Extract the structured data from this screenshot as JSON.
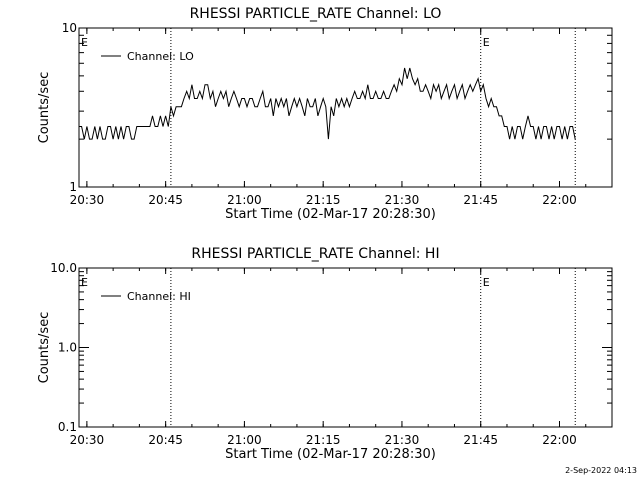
{
  "footer": {
    "timestamp": "2-Sep-2022 04:13"
  },
  "chart_data": [
    {
      "type": "line",
      "title": "RHESSI PARTICLE_RATE Channel: LO",
      "xlabel": "Start Time (02-Mar-17 20:28:30)",
      "ylabel": "Counts/sec",
      "yscale": "log",
      "xlim": [
        "20:28:30",
        "22:10:00"
      ],
      "ylim": [
        1,
        10
      ],
      "x_ticks": [
        "20:30",
        "20:45",
        "21:00",
        "21:15",
        "21:30",
        "21:45",
        "22:00"
      ],
      "y_ticks": [
        "1",
        "10"
      ],
      "legend": {
        "position": "top-left",
        "entries": [
          "Channel: LO"
        ]
      },
      "markers": [
        {
          "time": "20:46:00",
          "label": ""
        },
        {
          "time": "21:45:00",
          "label": "E"
        },
        {
          "time": "22:03:00",
          "label": ""
        }
      ],
      "start_marker_label": "E",
      "series": [
        {
          "name": "Channel: LO",
          "points": [
            [
              "20:28:30",
              2.4
            ],
            [
              "20:29:00",
              2.4
            ],
            [
              "20:29:30",
              2.0
            ],
            [
              "20:30:00",
              2.4
            ],
            [
              "20:30:30",
              2.0
            ],
            [
              "20:31:00",
              2.0
            ],
            [
              "20:31:30",
              2.4
            ],
            [
              "20:32:00",
              2.0
            ],
            [
              "20:32:30",
              2.4
            ],
            [
              "20:33:00",
              2.0
            ],
            [
              "20:33:30",
              2.0
            ],
            [
              "20:34:00",
              2.4
            ],
            [
              "20:34:30",
              2.4
            ],
            [
              "20:35:00",
              2.0
            ],
            [
              "20:35:30",
              2.4
            ],
            [
              "20:36:00",
              2.0
            ],
            [
              "20:36:30",
              2.4
            ],
            [
              "20:37:00",
              2.0
            ],
            [
              "20:37:30",
              2.4
            ],
            [
              "20:38:00",
              2.4
            ],
            [
              "20:38:30",
              2.0
            ],
            [
              "20:39:00",
              2.0
            ],
            [
              "20:39:30",
              2.4
            ],
            [
              "20:40:00",
              2.4
            ],
            [
              "20:41:00",
              2.4
            ],
            [
              "20:42:00",
              2.4
            ],
            [
              "20:42:30",
              2.8
            ],
            [
              "20:43:00",
              2.4
            ],
            [
              "20:43:30",
              2.4
            ],
            [
              "20:44:00",
              2.8
            ],
            [
              "20:44:30",
              2.4
            ],
            [
              "20:45:00",
              2.8
            ],
            [
              "20:45:30",
              2.4
            ],
            [
              "20:46:00",
              3.2
            ],
            [
              "20:46:30",
              2.8
            ],
            [
              "20:47:00",
              3.2
            ],
            [
              "20:48:00",
              3.2
            ],
            [
              "20:48:30",
              3.6
            ],
            [
              "20:49:00",
              4.0
            ],
            [
              "20:49:30",
              3.6
            ],
            [
              "20:50:00",
              4.4
            ],
            [
              "20:50:30",
              3.6
            ],
            [
              "20:51:00",
              3.6
            ],
            [
              "20:51:30",
              4.0
            ],
            [
              "20:52:00",
              3.6
            ],
            [
              "20:52:30",
              4.4
            ],
            [
              "20:53:00",
              4.4
            ],
            [
              "20:53:30",
              3.6
            ],
            [
              "20:54:00",
              4.0
            ],
            [
              "20:54:30",
              3.2
            ],
            [
              "20:55:00",
              3.6
            ],
            [
              "20:55:30",
              4.0
            ],
            [
              "20:56:00",
              3.6
            ],
            [
              "20:56:30",
              4.0
            ],
            [
              "20:57:00",
              3.2
            ],
            [
              "20:57:30",
              3.6
            ],
            [
              "20:58:00",
              4.0
            ],
            [
              "20:58:30",
              3.6
            ],
            [
              "20:59:00",
              3.2
            ],
            [
              "20:59:30",
              3.6
            ],
            [
              "21:00:00",
              3.6
            ],
            [
              "21:00:30",
              3.2
            ],
            [
              "21:01:00",
              3.6
            ],
            [
              "21:01:30",
              3.6
            ],
            [
              "21:02:00",
              3.2
            ],
            [
              "21:02:30",
              3.2
            ],
            [
              "21:03:00",
              3.6
            ],
            [
              "21:03:30",
              4.0
            ],
            [
              "21:04:00",
              3.2
            ],
            [
              "21:04:30",
              3.2
            ],
            [
              "21:05:00",
              3.6
            ],
            [
              "21:05:30",
              2.8
            ],
            [
              "21:06:00",
              3.6
            ],
            [
              "21:06:30",
              3.2
            ],
            [
              "21:07:00",
              3.6
            ],
            [
              "21:07:30",
              3.2
            ],
            [
              "21:08:00",
              3.6
            ],
            [
              "21:08:30",
              2.8
            ],
            [
              "21:09:00",
              3.2
            ],
            [
              "21:09:30",
              3.6
            ],
            [
              "21:10:00",
              3.2
            ],
            [
              "21:10:30",
              3.6
            ],
            [
              "21:11:00",
              3.2
            ],
            [
              "21:11:30",
              2.8
            ],
            [
              "21:12:00",
              3.6
            ],
            [
              "21:12:30",
              3.2
            ],
            [
              "21:13:00",
              3.2
            ],
            [
              "21:13:30",
              3.6
            ],
            [
              "21:14:00",
              2.8
            ],
            [
              "21:14:30",
              3.2
            ],
            [
              "21:15:00",
              3.6
            ],
            [
              "21:15:30",
              3.2
            ],
            [
              "21:16:00",
              2.0
            ],
            [
              "21:16:30",
              3.2
            ],
            [
              "21:17:00",
              2.8
            ],
            [
              "21:17:30",
              3.6
            ],
            [
              "21:18:00",
              3.2
            ],
            [
              "21:18:30",
              3.6
            ],
            [
              "21:19:00",
              3.2
            ],
            [
              "21:19:30",
              3.6
            ],
            [
              "21:20:00",
              3.2
            ],
            [
              "21:20:30",
              3.6
            ],
            [
              "21:21:00",
              4.0
            ],
            [
              "21:21:30",
              3.6
            ],
            [
              "21:22:00",
              3.6
            ],
            [
              "21:22:30",
              4.0
            ],
            [
              "21:23:00",
              3.6
            ],
            [
              "21:23:30",
              4.4
            ],
            [
              "21:24:00",
              3.6
            ],
            [
              "21:24:30",
              3.6
            ],
            [
              "21:25:00",
              4.0
            ],
            [
              "21:25:30",
              3.6
            ],
            [
              "21:26:00",
              3.6
            ],
            [
              "21:26:30",
              4.0
            ],
            [
              "21:27:00",
              3.6
            ],
            [
              "21:27:30",
              3.6
            ],
            [
              "21:28:00",
              4.0
            ],
            [
              "21:28:30",
              4.4
            ],
            [
              "21:29:00",
              4.0
            ],
            [
              "21:29:30",
              4.8
            ],
            [
              "21:30:00",
              4.4
            ],
            [
              "21:30:30",
              5.6
            ],
            [
              "21:31:00",
              4.8
            ],
            [
              "21:31:30",
              5.6
            ],
            [
              "21:32:00",
              4.8
            ],
            [
              "21:32:30",
              4.4
            ],
            [
              "21:33:00",
              4.8
            ],
            [
              "21:33:30",
              4.0
            ],
            [
              "21:34:00",
              4.0
            ],
            [
              "21:34:30",
              4.4
            ],
            [
              "21:35:00",
              4.0
            ],
            [
              "21:35:30",
              3.6
            ],
            [
              "21:36:00",
              4.4
            ],
            [
              "21:36:30",
              4.0
            ],
            [
              "21:37:00",
              4.4
            ],
            [
              "21:37:30",
              3.6
            ],
            [
              "21:38:00",
              4.0
            ],
            [
              "21:38:30",
              4.4
            ],
            [
              "21:39:00",
              3.6
            ],
            [
              "21:39:30",
              4.0
            ],
            [
              "21:40:00",
              4.4
            ],
            [
              "21:40:30",
              3.6
            ],
            [
              "21:41:00",
              4.0
            ],
            [
              "21:41:30",
              4.4
            ],
            [
              "21:42:00",
              3.6
            ],
            [
              "21:42:30",
              4.0
            ],
            [
              "21:43:00",
              4.4
            ],
            [
              "21:43:30",
              4.0
            ],
            [
              "21:44:00",
              4.4
            ],
            [
              "21:44:30",
              4.8
            ],
            [
              "21:45:00",
              4.0
            ],
            [
              "21:45:30",
              4.4
            ],
            [
              "21:46:00",
              3.6
            ],
            [
              "21:46:30",
              3.2
            ],
            [
              "21:47:00",
              3.6
            ],
            [
              "21:47:30",
              3.2
            ],
            [
              "21:48:00",
              3.2
            ],
            [
              "21:48:30",
              2.8
            ],
            [
              "21:49:00",
              2.8
            ],
            [
              "21:49:30",
              2.4
            ],
            [
              "21:50:00",
              2.4
            ],
            [
              "21:50:30",
              2.0
            ],
            [
              "21:51:00",
              2.4
            ],
            [
              "21:51:30",
              2.0
            ],
            [
              "21:52:00",
              2.4
            ],
            [
              "21:52:30",
              2.4
            ],
            [
              "21:53:00",
              2.0
            ],
            [
              "21:53:30",
              2.4
            ],
            [
              "21:54:00",
              2.8
            ],
            [
              "21:54:30",
              2.4
            ],
            [
              "21:55:00",
              2.4
            ],
            [
              "21:55:30",
              2.0
            ],
            [
              "21:56:00",
              2.4
            ],
            [
              "21:56:30",
              2.0
            ],
            [
              "21:57:00",
              2.4
            ],
            [
              "21:57:30",
              2.4
            ],
            [
              "21:58:00",
              2.0
            ],
            [
              "21:58:30",
              2.4
            ],
            [
              "21:59:00",
              2.0
            ],
            [
              "21:59:30",
              2.4
            ],
            [
              "22:00:00",
              2.4
            ],
            [
              "22:00:30",
              2.0
            ],
            [
              "22:01:00",
              2.4
            ],
            [
              "22:01:30",
              2.0
            ],
            [
              "22:02:00",
              2.4
            ],
            [
              "22:02:30",
              2.4
            ],
            [
              "22:03:00",
              2.0
            ]
          ]
        }
      ]
    },
    {
      "type": "line",
      "title": "RHESSI PARTICLE_RATE Channel: HI",
      "xlabel": "Start Time (02-Mar-17 20:28:30)",
      "ylabel": "Counts/sec",
      "yscale": "log",
      "xlim": [
        "20:28:30",
        "22:10:00"
      ],
      "ylim": [
        0.1,
        10
      ],
      "x_ticks": [
        "20:30",
        "20:45",
        "21:00",
        "21:15",
        "21:30",
        "21:45",
        "22:00"
      ],
      "y_ticks": [
        "0.1",
        "1.0",
        "10.0"
      ],
      "legend": {
        "position": "top-left",
        "entries": [
          "Channel: HI"
        ]
      },
      "markers": [
        {
          "time": "20:46:00",
          "label": ""
        },
        {
          "time": "21:45:00",
          "label": "E"
        },
        {
          "time": "22:03:00",
          "label": ""
        }
      ],
      "start_marker_label": "E",
      "series": [
        {
          "name": "Channel: HI",
          "points": []
        }
      ]
    }
  ]
}
